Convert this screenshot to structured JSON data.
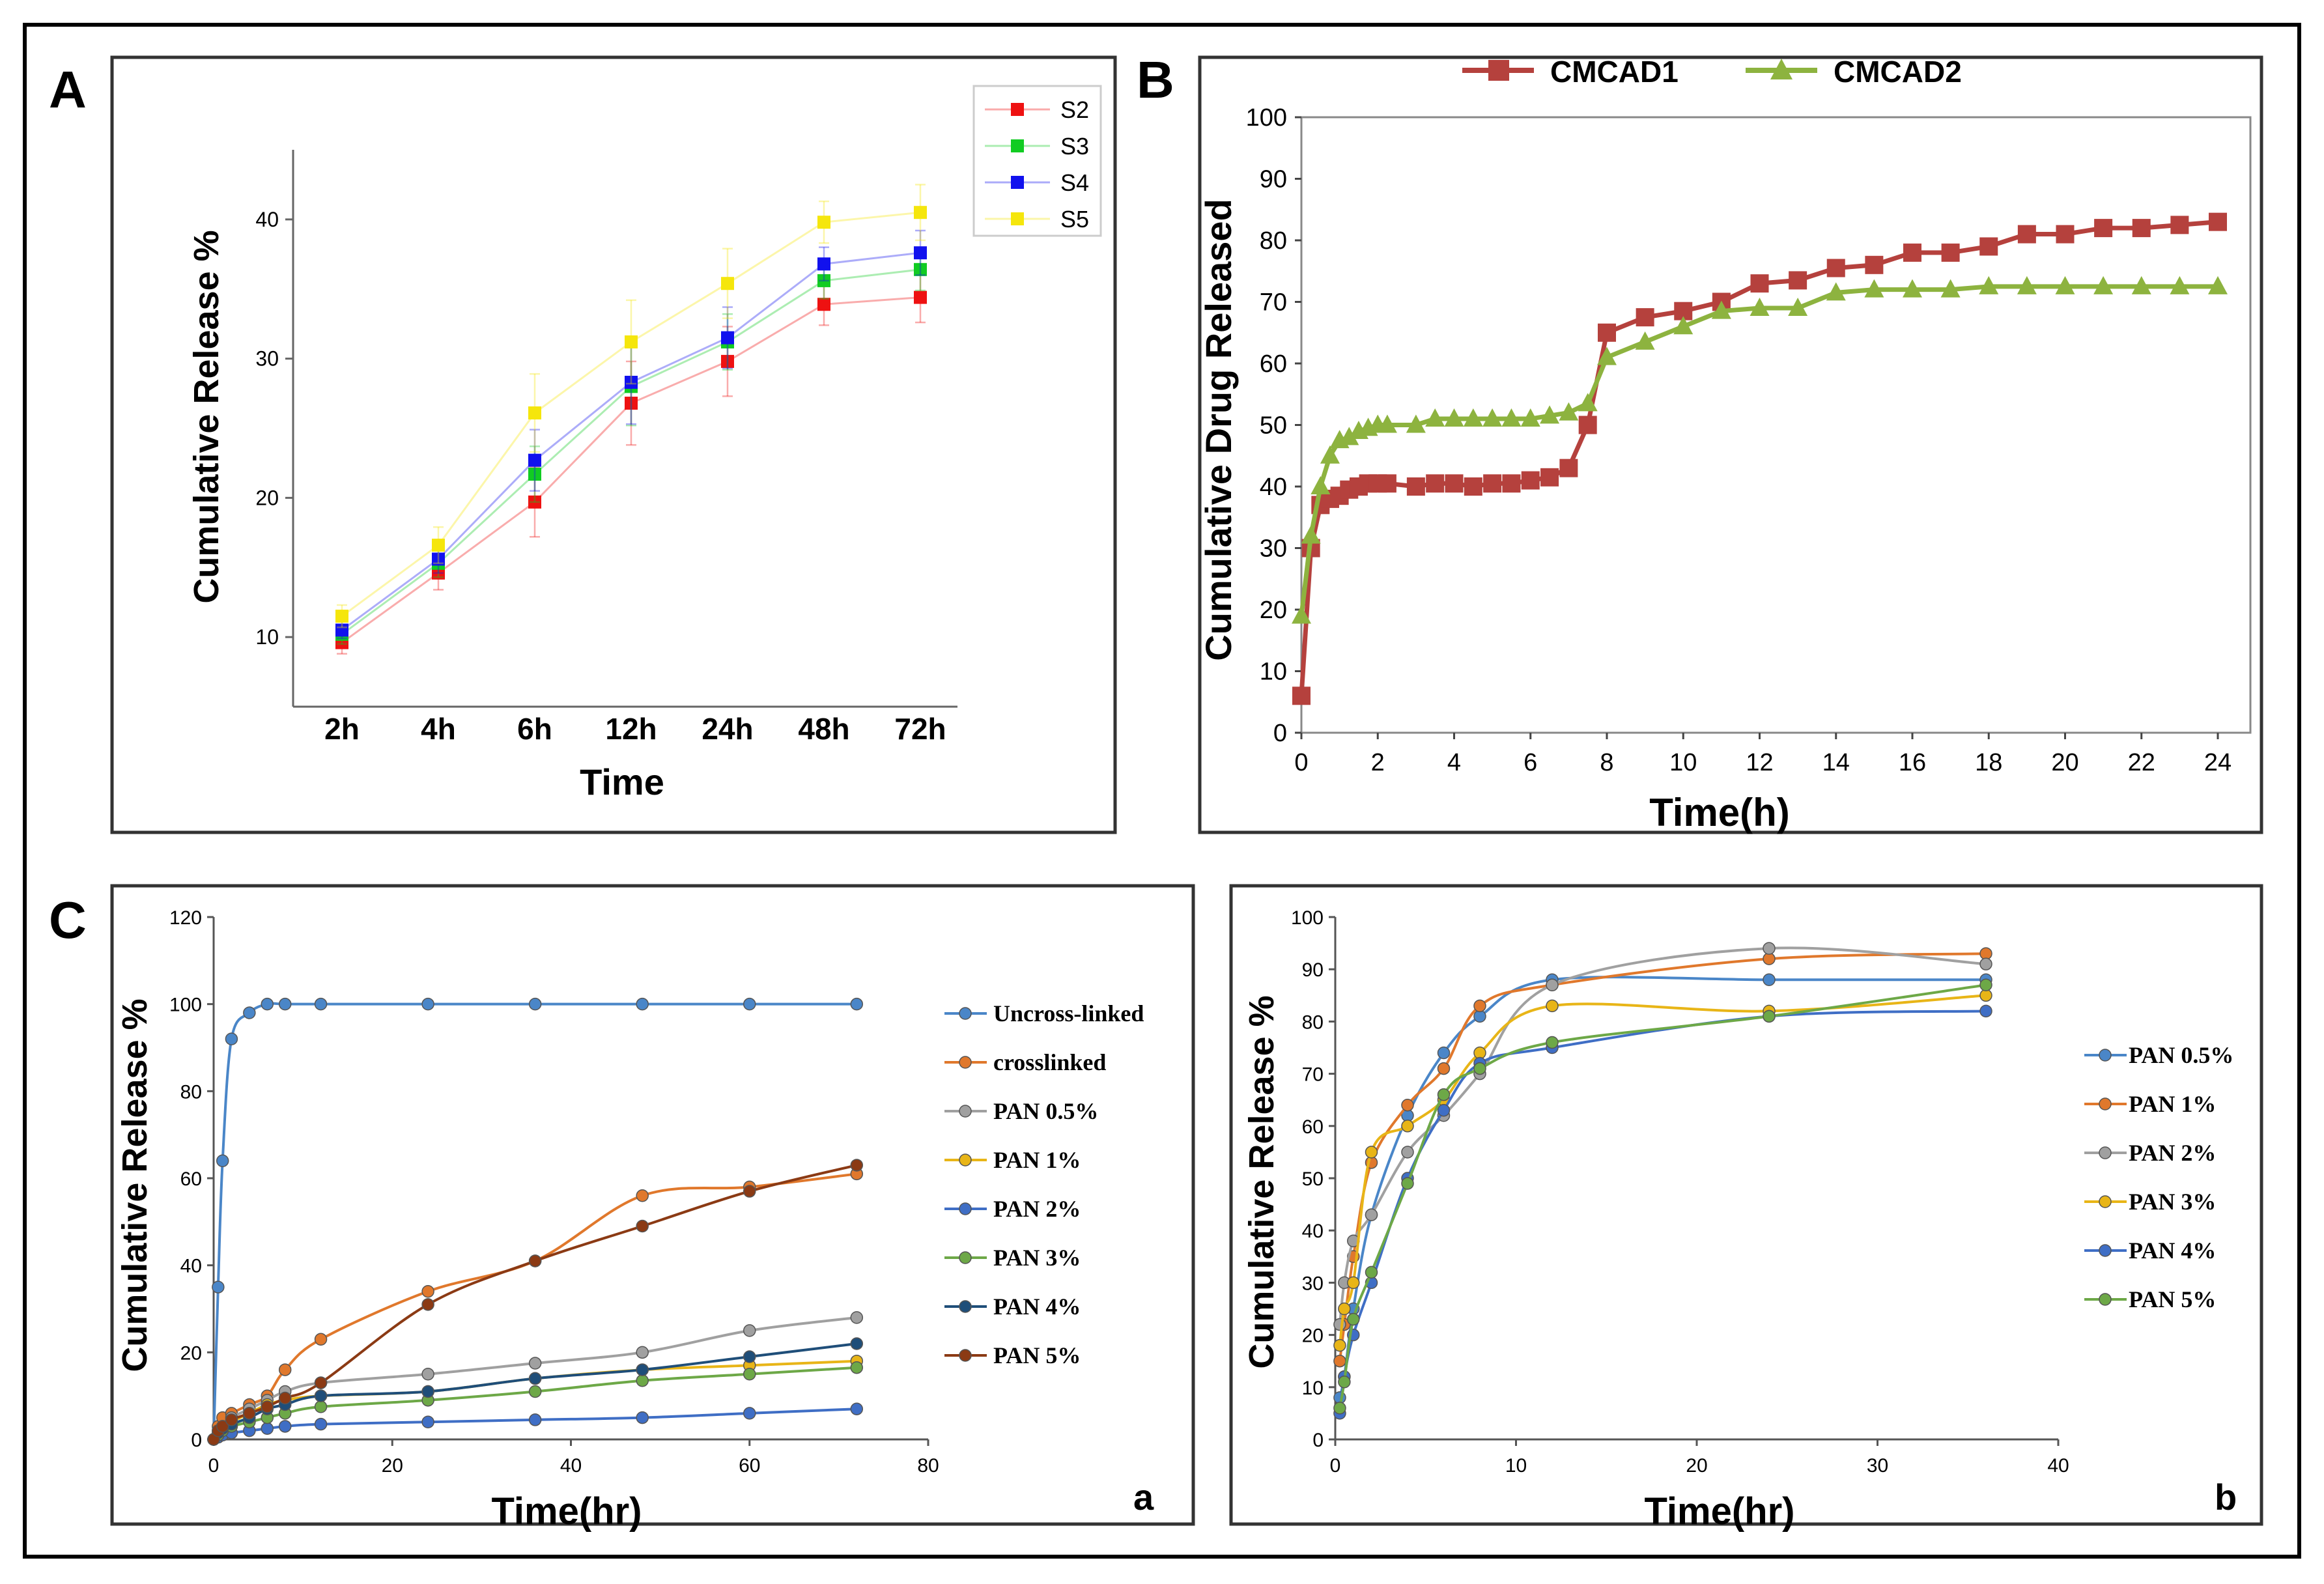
{
  "chart_data": [
    {
      "id": "A",
      "panel_label": "A",
      "type": "line",
      "xlabel": "Time",
      "ylabel": "Cumulative Release %",
      "categories": [
        "2h",
        "4h",
        "6h",
        "12h",
        "24h",
        "48h",
        "72h"
      ],
      "ylim": [
        5,
        45
      ],
      "yticks": [
        10,
        20,
        30,
        40
      ],
      "legend_position": "top-right",
      "series": [
        {
          "name": "S2",
          "color": "#ee1111",
          "values": [
            9.6,
            14.6,
            19.7,
            26.8,
            29.8,
            33.9,
            34.4
          ],
          "errors": [
            0.8,
            1.2,
            2.5,
            3.0,
            2.5,
            1.5,
            1.8
          ]
        },
        {
          "name": "S3",
          "color": "#11cc22",
          "values": [
            10.2,
            15.3,
            21.7,
            28.0,
            31.2,
            35.6,
            36.4
          ],
          "errors": [
            0.7,
            1.0,
            2.0,
            2.8,
            2.0,
            1.3,
            1.5
          ]
        },
        {
          "name": "S4",
          "color": "#1111ee",
          "values": [
            10.5,
            15.6,
            22.7,
            28.3,
            31.5,
            36.8,
            37.6
          ],
          "errors": [
            0.6,
            1.0,
            2.2,
            3.0,
            2.2,
            1.2,
            1.6
          ]
        },
        {
          "name": "S5",
          "color": "#f5e60c",
          "values": [
            11.5,
            16.6,
            26.1,
            31.2,
            35.4,
            39.8,
            40.5
          ],
          "errors": [
            0.8,
            1.3,
            2.8,
            3.0,
            2.5,
            1.5,
            2.0
          ]
        }
      ]
    },
    {
      "id": "B",
      "panel_label": "B",
      "type": "line",
      "xlabel": "Time(h)",
      "ylabel": "Cumulative Drug Released",
      "xlim": [
        0,
        24
      ],
      "ylim": [
        0,
        100
      ],
      "xticks": [
        0,
        2,
        4,
        6,
        8,
        10,
        12,
        14,
        16,
        18,
        20,
        22,
        24
      ],
      "yticks": [
        0,
        10,
        20,
        30,
        40,
        50,
        60,
        70,
        80,
        90,
        100
      ],
      "legend_position": "top",
      "series": [
        {
          "name": "CMCAD1",
          "color": "#b5413d",
          "marker": "square",
          "x": [
            0,
            0.25,
            0.5,
            0.75,
            1,
            1.25,
            1.5,
            1.75,
            2,
            2.25,
            3,
            3.5,
            4,
            4.5,
            5,
            5.5,
            6,
            6.5,
            7,
            7.5,
            8,
            9,
            10,
            11,
            12,
            13,
            14,
            15,
            16,
            17,
            18,
            19,
            20,
            21,
            22,
            23,
            24
          ],
          "values": [
            6,
            30,
            37,
            38,
            38.5,
            39.5,
            40,
            40.5,
            40.5,
            40.5,
            40,
            40.5,
            40.5,
            40,
            40.5,
            40.5,
            41,
            41.5,
            43,
            50,
            65,
            67.5,
            68.5,
            70,
            73,
            73.5,
            75.5,
            76,
            78,
            78,
            79,
            81,
            81,
            82,
            82,
            82.5,
            83
          ]
        },
        {
          "name": "CMCAD2",
          "color": "#8db33f",
          "marker": "triangle",
          "x": [
            0,
            0.25,
            0.5,
            0.75,
            1,
            1.25,
            1.5,
            1.75,
            2,
            2.25,
            3,
            3.5,
            4,
            4.5,
            5,
            5.5,
            6,
            6.5,
            7,
            7.5,
            8,
            9,
            10,
            11,
            12,
            13,
            14,
            15,
            16,
            17,
            18,
            19,
            20,
            21,
            22,
            23,
            24
          ],
          "values": [
            19,
            32,
            40,
            45,
            47.5,
            48,
            49,
            49.5,
            50,
            50,
            50,
            51,
            51,
            51,
            51,
            51,
            51,
            51.5,
            52,
            53.5,
            61,
            63.5,
            66,
            68.5,
            69,
            69,
            71.5,
            72,
            72,
            72,
            72.5,
            72.5,
            72.5,
            72.5,
            72.5,
            72.5,
            72.5
          ]
        }
      ]
    },
    {
      "id": "Ca",
      "panel_label": "C",
      "sub_label": "a",
      "type": "line",
      "xlabel": "Time(hr)",
      "ylabel": "Cumulative Release %",
      "xlim": [
        0,
        80
      ],
      "ylim": [
        0,
        120
      ],
      "xticks": [
        0,
        20,
        40,
        60,
        80
      ],
      "yticks": [
        0,
        20,
        40,
        60,
        80,
        100,
        120
      ],
      "legend_position": "right",
      "x": [
        0,
        0.5,
        1,
        2,
        4,
        6,
        8,
        12,
        24,
        36,
        48,
        60,
        72
      ],
      "series": [
        {
          "name": "Uncross-linked",
          "color": "#4a86c8",
          "values": [
            0,
            35,
            64,
            92,
            98,
            100,
            100,
            100,
            100,
            100,
            100,
            100,
            100
          ]
        },
        {
          "name": "crosslinked",
          "color": "#e0782c",
          "values": [
            0,
            3,
            5,
            6,
            8,
            10,
            16,
            23,
            34,
            41,
            56,
            58,
            61
          ]
        },
        {
          "name": "PAN 0.5%",
          "color": "#a0a0a0",
          "values": [
            0,
            2,
            3,
            5,
            7,
            9,
            11,
            13,
            15,
            17.5,
            20,
            25,
            28
          ]
        },
        {
          "name": "PAN 1%",
          "color": "#e8b517",
          "values": [
            0,
            1.5,
            2.5,
            4,
            6,
            8,
            9,
            10,
            11,
            14,
            16,
            17,
            18
          ]
        },
        {
          "name": "PAN 2%",
          "color": "#3f6ec5",
          "values": [
            0,
            0.5,
            1,
            1.5,
            2,
            2.5,
            3,
            3.5,
            4,
            4.5,
            5,
            6,
            7
          ]
        },
        {
          "name": "PAN 3%",
          "color": "#6da847",
          "values": [
            0,
            1,
            2,
            3,
            4,
            5,
            6,
            7.5,
            9,
            11,
            13.5,
            15,
            16.5
          ]
        },
        {
          "name": "PAN 4%",
          "color": "#1f4e79",
          "values": [
            0,
            1.5,
            2.5,
            3.5,
            5,
            7,
            8,
            10,
            11,
            14,
            16,
            19,
            22
          ]
        },
        {
          "name": "PAN 5%",
          "color": "#8b3a14",
          "values": [
            0,
            2,
            3,
            4.5,
            6,
            7.5,
            9.5,
            13,
            31,
            41,
            49,
            57,
            63
          ]
        }
      ]
    },
    {
      "id": "Cb",
      "sub_label": "b",
      "type": "line",
      "xlabel": "Time(hr)",
      "ylabel": "Cumulative Release %",
      "xlim": [
        0,
        40
      ],
      "ylim": [
        0,
        100
      ],
      "xticks": [
        0,
        10,
        20,
        30,
        40
      ],
      "yticks": [
        0,
        10,
        20,
        30,
        40,
        50,
        60,
        70,
        80,
        90,
        100
      ],
      "legend_position": "right",
      "x": [
        0.25,
        0.5,
        1,
        2,
        4,
        6,
        8,
        12,
        24,
        36
      ],
      "series": [
        {
          "name": "PAN 0.5%",
          "color": "#4a86c8",
          "values": [
            8,
            12,
            25,
            43,
            62,
            74,
            81,
            88,
            88,
            88
          ]
        },
        {
          "name": "PAN 1%",
          "color": "#e0782c",
          "values": [
            15,
            22,
            35,
            53,
            64,
            71,
            83,
            87,
            92,
            93
          ]
        },
        {
          "name": "PAN 2%",
          "color": "#a0a0a0",
          "values": [
            22,
            30,
            38,
            43,
            55,
            62,
            70,
            87,
            94,
            91
          ]
        },
        {
          "name": "PAN 3%",
          "color": "#e8b517",
          "values": [
            18,
            25,
            30,
            55,
            60,
            65,
            74,
            83,
            82,
            85
          ]
        },
        {
          "name": "PAN 4%",
          "color": "#3f6ec5",
          "values": [
            5,
            12,
            20,
            30,
            50,
            63,
            72,
            75,
            81,
            82
          ]
        },
        {
          "name": "PAN 5%",
          "color": "#6da847",
          "values": [
            6,
            11,
            23,
            32,
            49,
            66,
            71,
            76,
            81,
            87
          ]
        }
      ]
    }
  ]
}
